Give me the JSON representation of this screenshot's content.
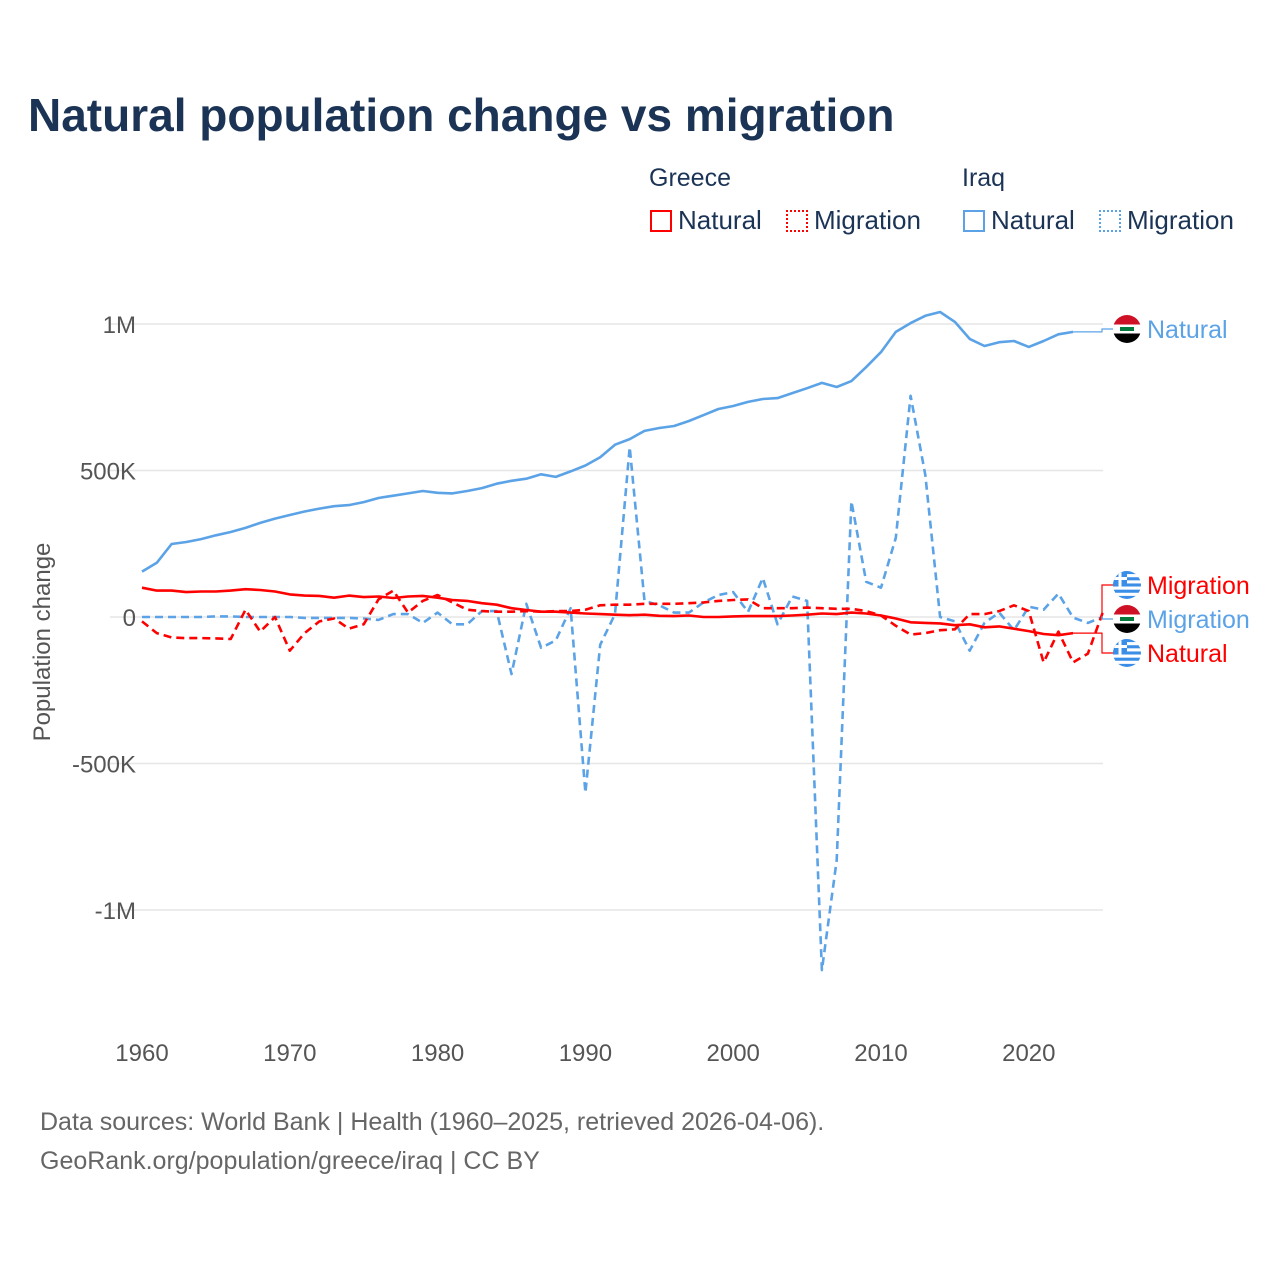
{
  "chart_data": {
    "type": "line",
    "title": "Natural population change vs migration",
    "ylabel": "Population change",
    "ylim": [
      -1250000,
      1100000
    ],
    "xlim": [
      1960,
      2025
    ],
    "grid": true,
    "y_ticks": [
      {
        "v": 1000000,
        "label": "1M"
      },
      {
        "v": 500000,
        "label": "500K"
      },
      {
        "v": 0,
        "label": "0"
      },
      {
        "v": -500000,
        "label": "-500K"
      },
      {
        "v": -1000000,
        "label": "-1M"
      }
    ],
    "x_ticks": [
      1960,
      1970,
      1980,
      1990,
      2000,
      2010,
      2020
    ],
    "legend": {
      "groups": [
        {
          "name": "Greece",
          "items": [
            "Natural",
            "Migration"
          ]
        },
        {
          "name": "Iraq",
          "items": [
            "Natural",
            "Migration"
          ]
        }
      ],
      "placement": "top-right"
    },
    "series": [
      {
        "name": "Iraq Natural",
        "country": "Iraq",
        "kind": "Natural",
        "color": "#5ba3e6",
        "dash": false,
        "start": 1960,
        "values_k": [
          155,
          185,
          249,
          256,
          266,
          279,
          290,
          304,
          321,
          336,
          348,
          360,
          370,
          378,
          382,
          392,
          406,
          414,
          422,
          430,
          424,
          422,
          430,
          440,
          455,
          465,
          472,
          487,
          478,
          497,
          517,
          545,
          588,
          607,
          635,
          645,
          652,
          669,
          689,
          710,
          720,
          734,
          744,
          747,
          764,
          781,
          799,
          785,
          805,
          853,
          904,
          973,
          1003,
          1028,
          1041,
          1007,
          949,
          925,
          938,
          942,
          922,
          942,
          965,
          973
        ]
      },
      {
        "name": "Iraq Migration",
        "country": "Iraq",
        "kind": "Migration",
        "color": "#5ba3e6",
        "dash": true,
        "start": 1960,
        "values_k": [
          0,
          0,
          0,
          0,
          0,
          2,
          2,
          0,
          0,
          0,
          0,
          -3,
          -3,
          -3,
          -3,
          -5,
          -10,
          10,
          10,
          -20,
          15,
          -25,
          -25,
          20,
          20,
          -195,
          45,
          -105,
          -80,
          30,
          -600,
          -95,
          10,
          580,
          55,
          40,
          15,
          15,
          50,
          75,
          85,
          17,
          133,
          -25,
          70,
          55,
          -1205,
          -830,
          395,
          120,
          100,
          270,
          755,
          485,
          0,
          -15,
          -115,
          -20,
          15,
          -45,
          35,
          25,
          80,
          -2,
          -20,
          0
        ]
      },
      {
        "name": "Greece Natural",
        "country": "Greece",
        "kind": "Natural",
        "color": "#ff0000",
        "dash": false,
        "start": 1960,
        "values_k": [
          100,
          90,
          90,
          85,
          87,
          87,
          90,
          95,
          92,
          87,
          77,
          73,
          72,
          66,
          73,
          68,
          70,
          65,
          70,
          72,
          66,
          58,
          55,
          47,
          42,
          30,
          24,
          18,
          18,
          15,
          12,
          10,
          8,
          6,
          8,
          4,
          3,
          5,
          0,
          0,
          2,
          3,
          3,
          3,
          5,
          8,
          12,
          10,
          15,
          12,
          5,
          -5,
          -18,
          -20,
          -22,
          -28,
          -25,
          -35,
          -32,
          -40,
          -48,
          -58,
          -62,
          -55
        ]
      },
      {
        "name": "Greece Migration",
        "country": "Greece",
        "kind": "Migration",
        "color": "#ff0000",
        "dash": true,
        "start": 1960,
        "values_k": [
          -15,
          -55,
          -70,
          -72,
          -72,
          -73,
          -75,
          25,
          -50,
          0,
          -115,
          -55,
          -15,
          -5,
          -40,
          -25,
          60,
          90,
          15,
          55,
          75,
          50,
          25,
          20,
          18,
          18,
          20,
          18,
          20,
          20,
          25,
          40,
          42,
          42,
          45,
          45,
          45,
          47,
          50,
          55,
          58,
          60,
          30,
          30,
          30,
          32,
          30,
          28,
          28,
          20,
          5,
          -30,
          -60,
          -55,
          -45,
          -42,
          10,
          10,
          20,
          40,
          20,
          -155,
          -50,
          -155,
          -125,
          15
        ]
      }
    ],
    "end_labels": [
      {
        "text": "Natural",
        "country": "Iraq",
        "color": "#5ba3e6"
      },
      {
        "text": "Migration",
        "country": "Greece",
        "color": "#ff0000"
      },
      {
        "text": "Migration",
        "country": "Iraq",
        "color": "#5ba3e6"
      },
      {
        "text": "Natural",
        "country": "Greece",
        "color": "#ff0000"
      }
    ]
  },
  "footer": {
    "line1": "Data sources: World Bank | Health (1960–2025, retrieved 2026-04-06).",
    "line2": "GeoRank.org/population/greece/iraq | CC BY"
  }
}
